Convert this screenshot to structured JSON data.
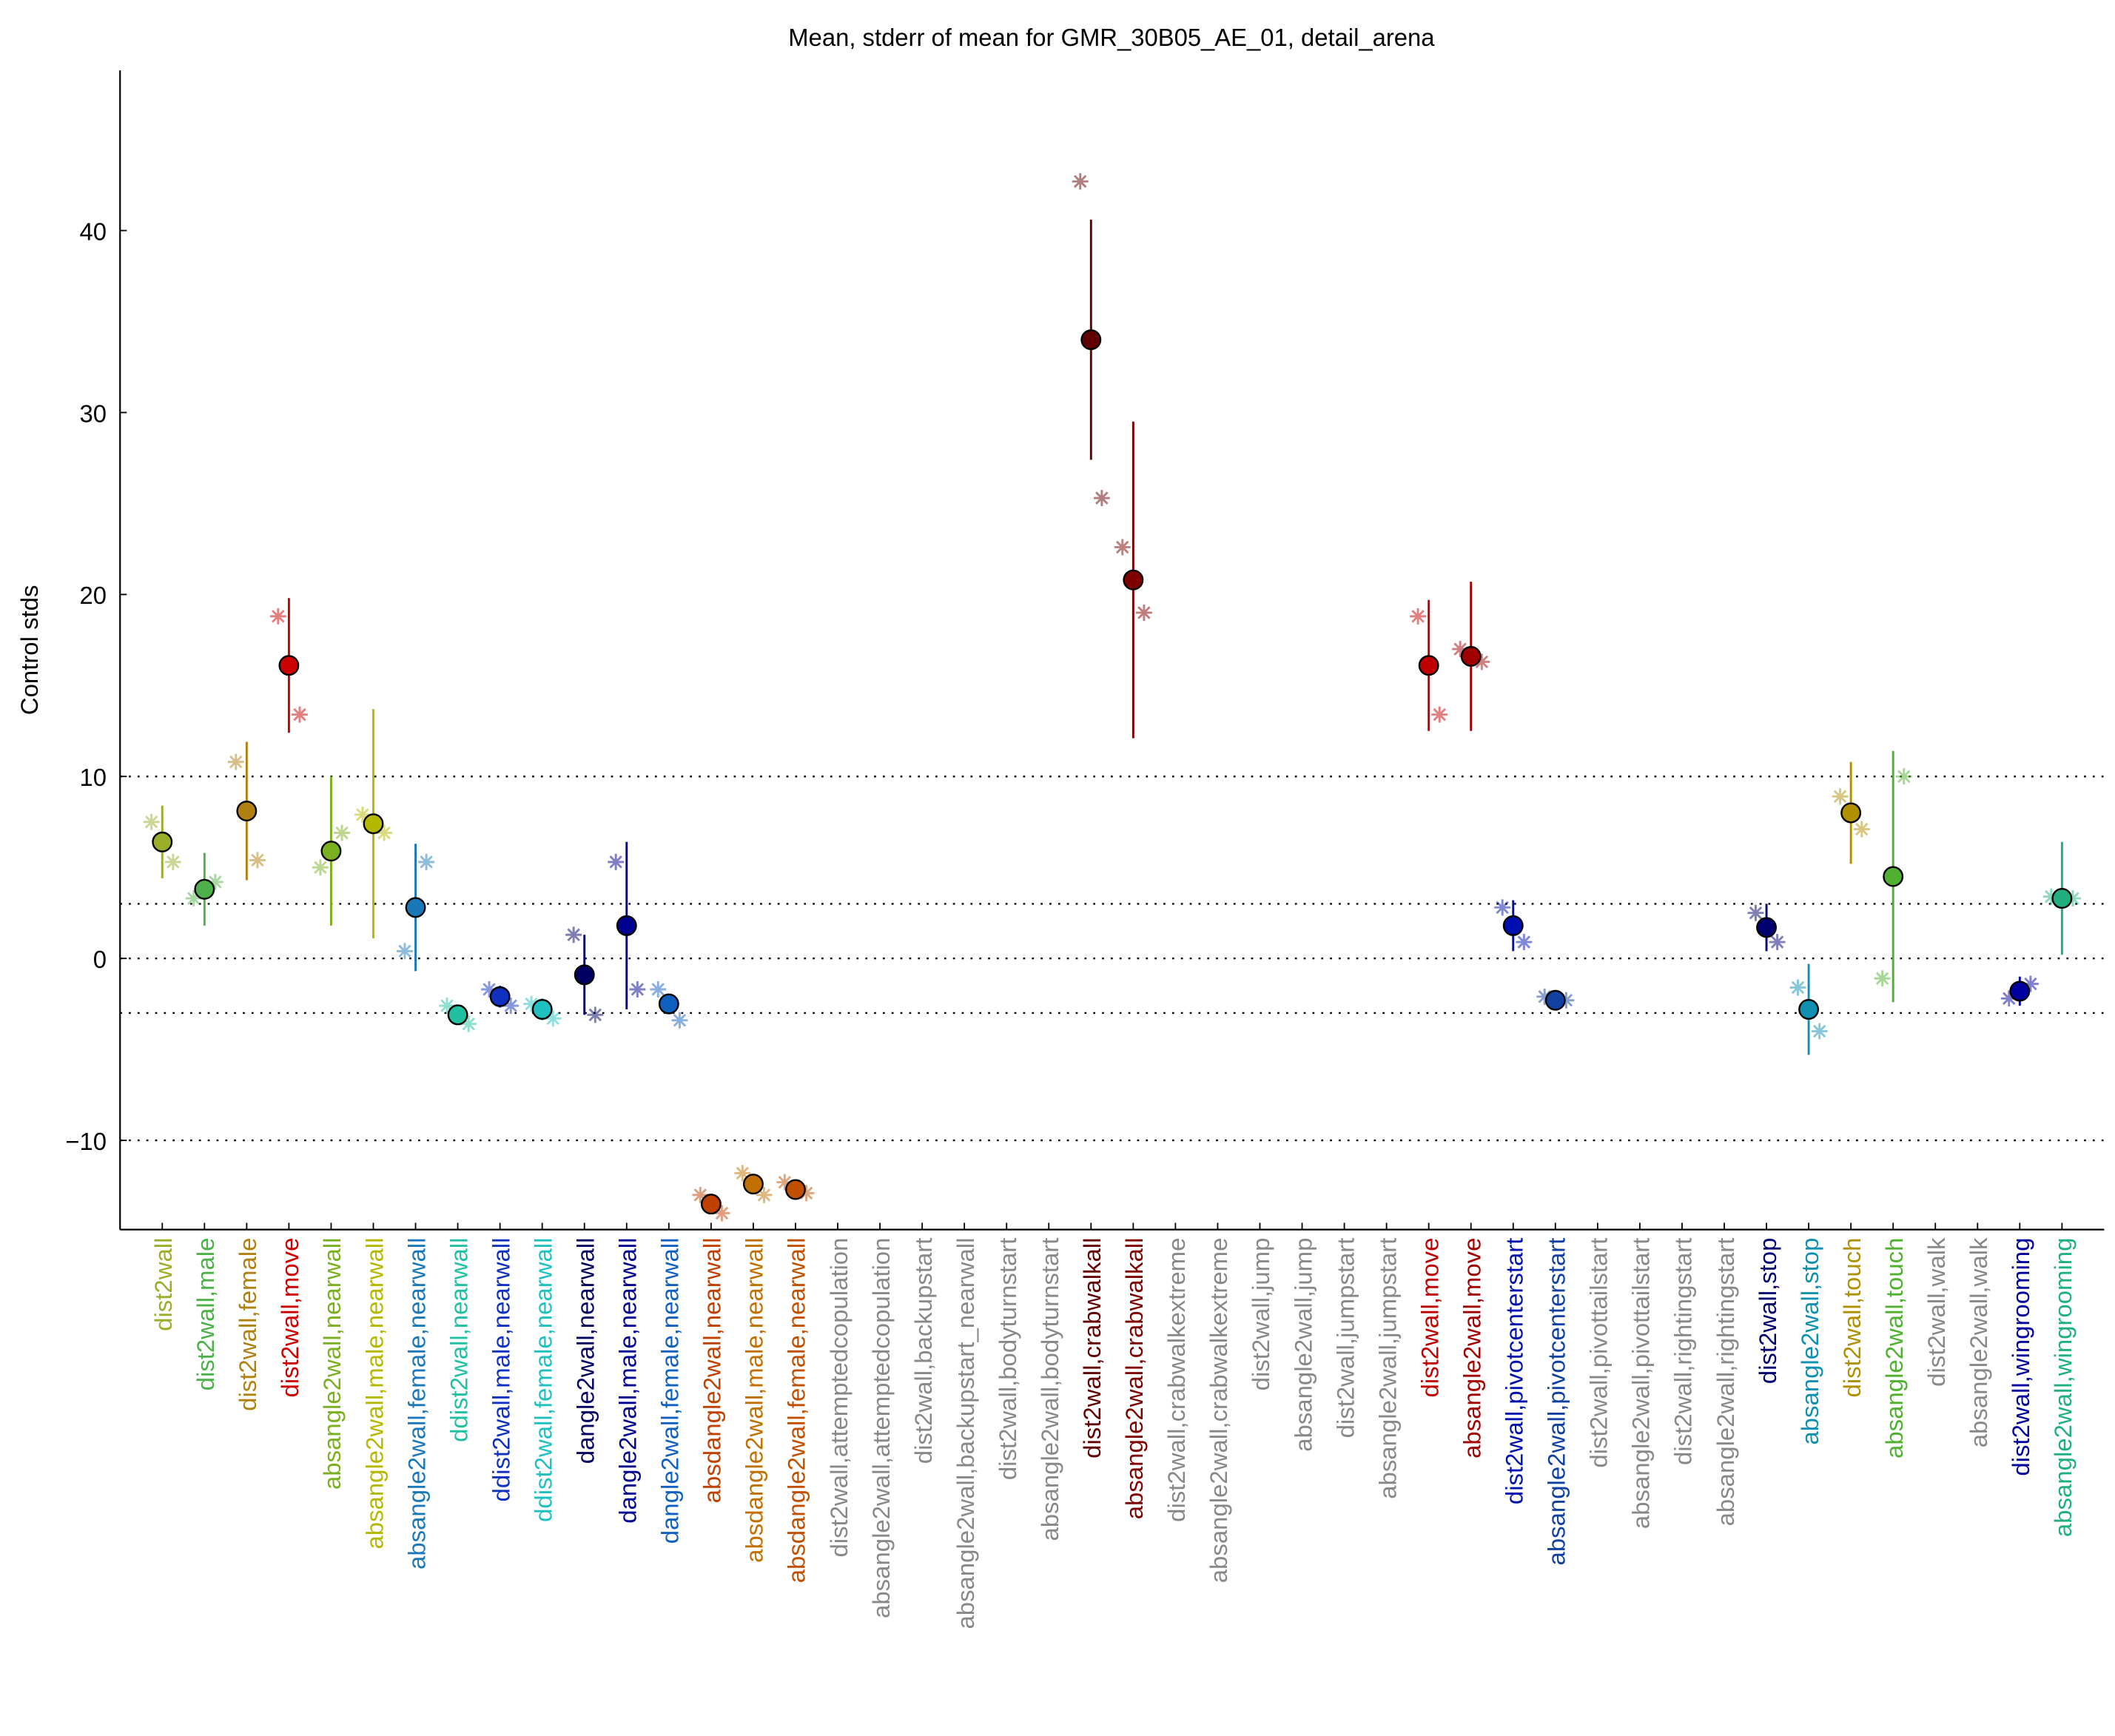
{
  "chart_data": {
    "type": "errorbar",
    "title": "Mean, stderr of mean for GMR_30B05_AE_01, detail_arena",
    "y_label": "Control stds",
    "categories": [
      "dist2wall",
      "dist2wall,male",
      "dist2wall,female",
      "dist2wall,move",
      "absangle2wall,nearwall",
      "absangle2wall,male,nearwall",
      "absangle2wall,female,nearwall",
      "ddist2wall,nearwall",
      "ddist2wall,male,nearwall",
      "ddist2wall,female,nearwall",
      "dangle2wall,nearwall",
      "dangle2wall,male,nearwall",
      "dangle2wall,female,nearwall",
      "absdangle2wall,nearwall",
      "absdangle2wall,male,nearwall",
      "absdangle2wall,female,nearwall",
      "dist2wall,attemptedcopulation",
      "absangle2wall,attemptedcopulation",
      "dist2wall,backupstart",
      "absangle2wall,backupstart_nearwall",
      "dist2wall,bodyturnstart",
      "absangle2wall,bodyturnstart",
      "dist2wall,crabwalkall",
      "absangle2wall,crabwalkall",
      "dist2wall,crabwalkextreme",
      "absangle2wall,crabwalkextreme",
      "dist2wall,jump",
      "absangle2wall,jump",
      "dist2wall,jumpstart",
      "absangle2wall,jumpstart",
      "dist2wall,move",
      "absangle2wall,move",
      "dist2wall,pivotcenterstart",
      "absangle2wall,pivotcenterstart",
      "dist2wall,pivottailstart",
      "absangle2wall,pivottailstart",
      "dist2wall,rightingstart",
      "absangle2wall,rightingstart",
      "dist2wall,stop",
      "absangle2wall,stop",
      "dist2wall,touch",
      "absangle2wall,touch",
      "dist2wall,walk",
      "absangle2wall,walk",
      "dist2wall,wingrooming",
      "absangle2wall,wingrooming"
    ],
    "colors": [
      "#9aae2a",
      "#4db04a",
      "#b08010",
      "#cc0000",
      "#7ab020",
      "#b5b800",
      "#1a78b8",
      "#20c0a0",
      "#1030c0",
      "#20c0c0",
      "#000060",
      "#000090",
      "#1060c0",
      "#c04000",
      "#c07000",
      "#c05000",
      "#888888",
      "#888888",
      "#888888",
      "#888888",
      "#888888",
      "#888888",
      "#600000",
      "#800000",
      "#888888",
      "#888888",
      "#888888",
      "#888888",
      "#888888",
      "#888888",
      "#c00000",
      "#a00000",
      "#0010b0",
      "#1040a0",
      "#888888",
      "#888888",
      "#888888",
      "#888888",
      "#000070",
      "#1090b0",
      "#b09000",
      "#50b030",
      "#888888",
      "#888888",
      "#0000a0",
      "#20b080"
    ],
    "means": [
      6.4,
      3.8,
      8.1,
      16.1,
      5.9,
      7.4,
      2.8,
      -3.1,
      -2.1,
      -2.8,
      -0.9,
      1.8,
      -2.5,
      -13.5,
      -12.4,
      -12.7,
      null,
      null,
      null,
      null,
      null,
      null,
      34.0,
      20.8,
      null,
      null,
      null,
      null,
      null,
      null,
      16.1,
      16.6,
      1.8,
      -2.3,
      null,
      null,
      null,
      null,
      1.7,
      -2.8,
      8.0,
      4.5,
      null,
      null,
      -1.8,
      3.3
    ],
    "errors": [
      2.0,
      2.0,
      3.8,
      3.7,
      4.1,
      6.3,
      3.5,
      0.5,
      0.6,
      0.6,
      2.2,
      4.6,
      0.5,
      0.3,
      0.3,
      0.3,
      null,
      null,
      null,
      null,
      null,
      null,
      6.6,
      8.7,
      null,
      null,
      null,
      null,
      null,
      null,
      3.6,
      4.1,
      1.4,
      0.3,
      null,
      null,
      null,
      null,
      1.3,
      2.5,
      2.8,
      6.9,
      null,
      null,
      0.8,
      3.1
    ],
    "points_left": [
      7.5,
      3.3,
      10.8,
      18.8,
      5.0,
      7.9,
      0.4,
      -2.6,
      -1.7,
      -2.5,
      1.3,
      5.3,
      -1.7,
      -13.0,
      -11.8,
      -12.3,
      null,
      null,
      null,
      null,
      null,
      null,
      42.7,
      22.6,
      null,
      null,
      null,
      null,
      null,
      null,
      18.8,
      17.0,
      2.8,
      -2.1,
      null,
      null,
      null,
      null,
      2.5,
      -1.6,
      8.9,
      -1.1,
      null,
      null,
      -2.2,
      3.4
    ],
    "points_right": [
      5.3,
      4.2,
      5.4,
      13.4,
      6.9,
      6.9,
      5.3,
      -3.6,
      -2.6,
      -3.3,
      -3.1,
      -1.7,
      -3.4,
      -14.0,
      -13.0,
      -12.9,
      null,
      null,
      null,
      null,
      null,
      null,
      25.3,
      19.0,
      null,
      null,
      null,
      null,
      null,
      null,
      13.4,
      16.3,
      0.9,
      -2.3,
      null,
      null,
      null,
      null,
      0.9,
      -4.0,
      7.1,
      10.0,
      null,
      null,
      -1.4,
      3.3
    ],
    "ylim": [
      -14.9,
      48.8
    ],
    "yticks": [
      {
        "value": -10,
        "label": "−10"
      },
      0,
      10,
      20,
      30,
      40
    ],
    "reference_lines": [
      -10,
      -3,
      0,
      3,
      10
    ]
  }
}
